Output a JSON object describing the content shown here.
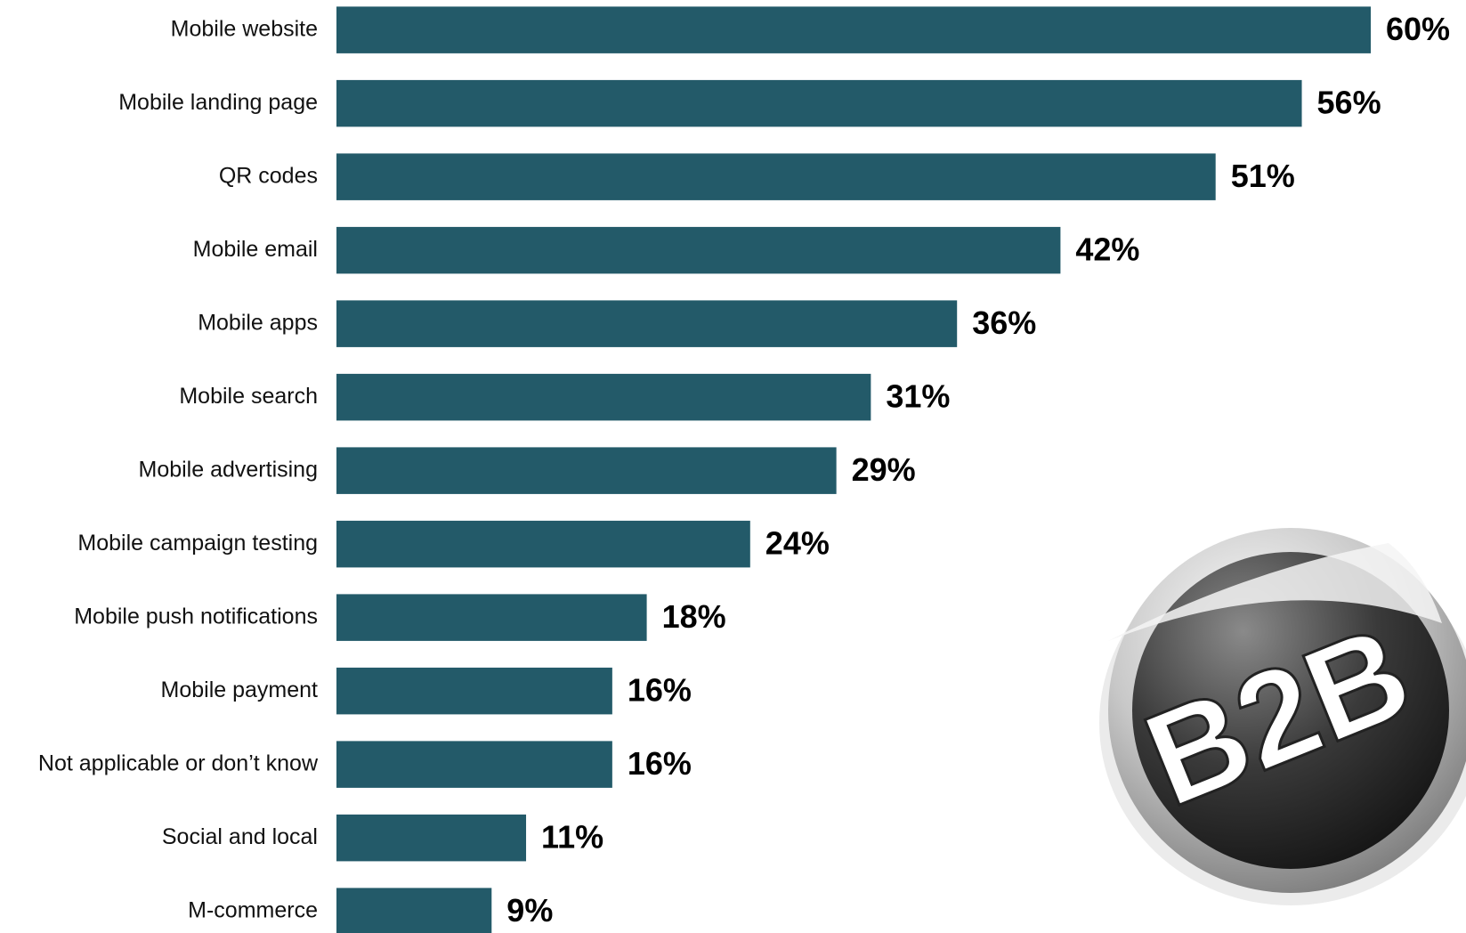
{
  "chart_data": {
    "type": "bar",
    "orientation": "horizontal",
    "color": "#235a69",
    "categories": [
      "Mobile website",
      "Mobile landing page",
      "QR codes",
      "Mobile email",
      "Mobile apps",
      "Mobile search",
      "Mobile advertising",
      "Mobile campaign testing",
      "Mobile push notifications",
      "Mobile payment",
      "Not applicable or don’t know",
      "Social and local",
      "M-commerce"
    ],
    "values": [
      60,
      56,
      51,
      42,
      36,
      31,
      29,
      24,
      18,
      16,
      16,
      11,
      9
    ],
    "value_labels": [
      "60%",
      "56%",
      "51%",
      "42%",
      "36%",
      "31%",
      "29%",
      "24%",
      "18%",
      "16%",
      "16%",
      "11%",
      "9%"
    ],
    "annotation": "B2B"
  }
}
